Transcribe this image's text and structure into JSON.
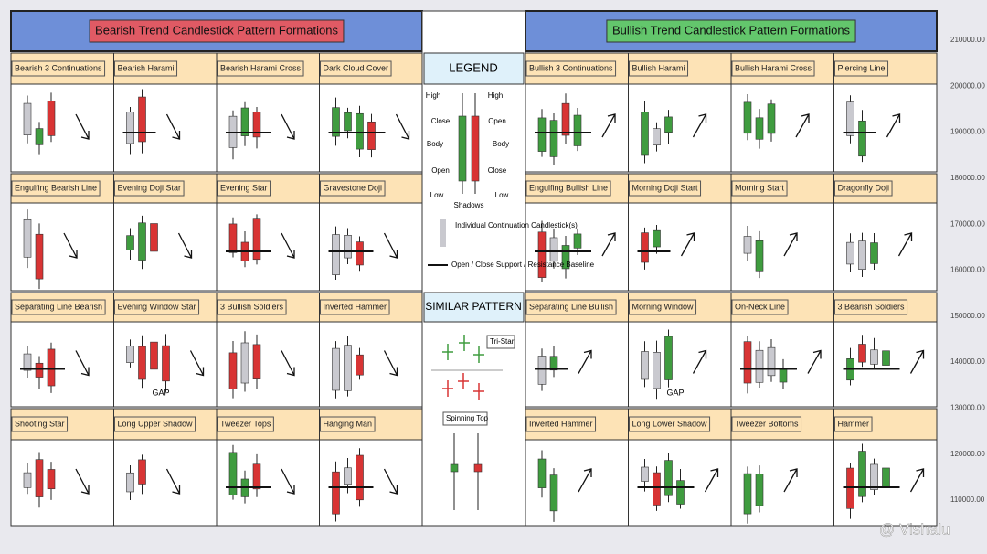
{
  "left": {
    "title": "Bearish Trend Candlestick Pattern Formations",
    "patterns": [
      "Bearish 3 Continuations",
      "Bearish Harami",
      "Bearish Harami Cross",
      "Dark Cloud Cover",
      "Engulfing Bearish Line",
      "Evening Doji Star",
      "Evening Star",
      "Gravestone Doji",
      "Separating Line Bearish",
      "Evening Window Star",
      "3 Bullish Soldiers",
      "Inverted Hammer",
      "Shooting Star",
      "Long Upper Shadow",
      "Tweezer Tops",
      "Hanging Man"
    ]
  },
  "right": {
    "title": "Bullish Trend Candlestick Pattern Formations",
    "patterns": [
      "Bullish 3 Continuations",
      "Bullish Harami",
      "Bullish Harami Cross",
      "Piercing Line",
      "Engulfing Bullish Line",
      "Morning Doji Start",
      "Morning Start",
      "Dragonfly Doji",
      "Separating Line Bullish",
      "Morning Window",
      "On-Neck Line",
      "3 Bearish Soldiers",
      "Inverted Hammer",
      "Long Lower Shadow",
      "Tweezer Bottoms",
      "Hammer"
    ]
  },
  "legend": {
    "title": "LEGEND",
    "labels": [
      "High",
      "High",
      "Close",
      "Open",
      "Body",
      "Body",
      "Open",
      "Close",
      "Low",
      "Low",
      "Shadows"
    ],
    "continuation": "Individual Continuation Candlestick(s)",
    "baseline": "Open / Close Support / Resistance Baseline"
  },
  "similar": {
    "title": "SIMILAR PATTERN",
    "items": [
      "Tri-Star",
      "Spinning Top"
    ]
  },
  "gap_label": "GAP",
  "price_axis": [
    "210000.00",
    "200000.00",
    "190000.00",
    "180000.00",
    "170000.00",
    "160000.00",
    "150000.00",
    "140000.00",
    "130000.00",
    "120000.00",
    "110000.00"
  ],
  "watermark": "@ Vishalu"
}
